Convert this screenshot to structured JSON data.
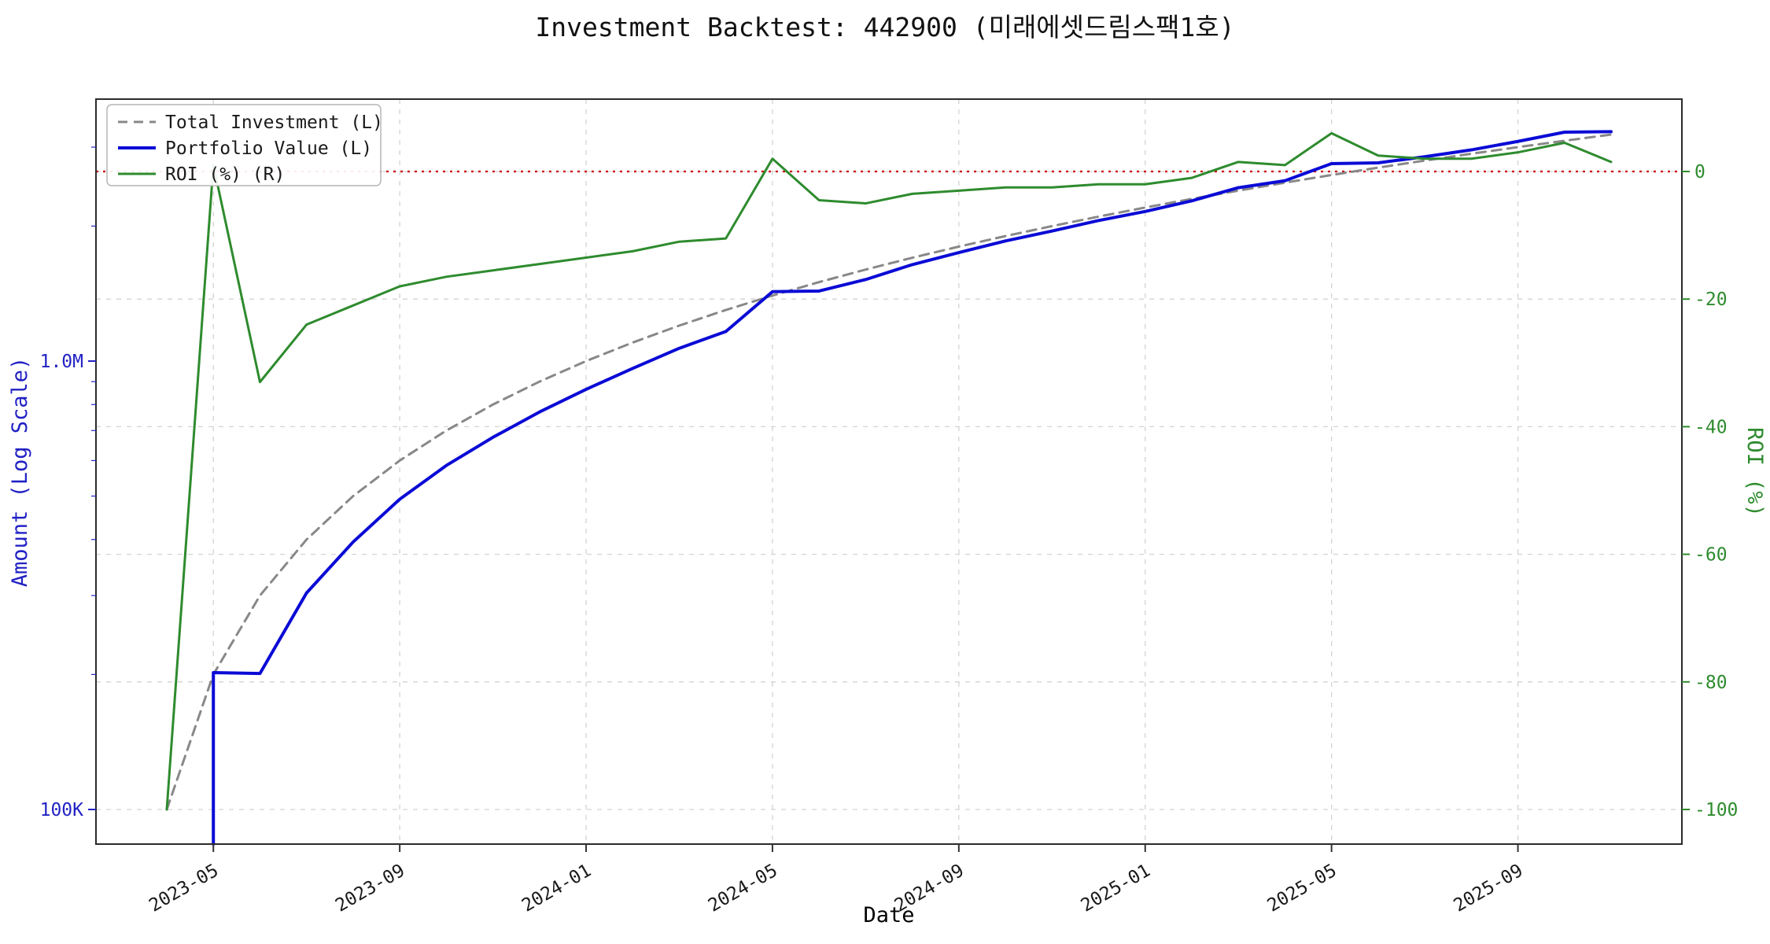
{
  "title": "Investment Backtest: 442900 (미래에셋드림스팩1호)",
  "chart_data": {
    "type": "line",
    "title": "Investment Backtest: 442900 (미래에셋드림스팩1호)",
    "xlabel": "Date",
    "ylabel_left": "Amount (Log Scale)",
    "ylabel_right": "ROI (%)",
    "x_tick_labels": [
      "2023-05",
      "2023-09",
      "2024-01",
      "2024-05",
      "2024-09",
      "2025-01",
      "2025-05",
      "2025-09"
    ],
    "left_ticks": [
      {
        "label": "1.0M",
        "value": 1000000
      },
      {
        "label": "100K",
        "value": 100000
      }
    ],
    "right_ticks": [
      0,
      -20,
      -40,
      -60,
      -80,
      -100
    ],
    "dates": [
      "2023-04",
      "2023-05",
      "2023-06",
      "2023-07",
      "2023-08",
      "2023-09",
      "2023-10",
      "2023-11",
      "2023-12",
      "2024-01",
      "2024-02",
      "2024-03",
      "2024-04",
      "2024-05",
      "2024-06",
      "2024-07",
      "2024-08",
      "2024-09",
      "2024-10",
      "2024-11",
      "2024-12",
      "2025-01",
      "2025-02",
      "2025-03",
      "2025-04",
      "2025-05",
      "2025-06",
      "2025-07",
      "2025-08",
      "2025-09",
      "2025-10",
      "2025-11"
    ],
    "series": [
      {
        "name": "Total Investment (L)",
        "axis": "left",
        "style": "dashed",
        "color": "#888888",
        "values": [
          100000,
          200000,
          300000,
          400000,
          500000,
          600000,
          700000,
          800000,
          900000,
          1000000,
          1100000,
          1200000,
          1300000,
          1400000,
          1500000,
          1600000,
          1700000,
          1800000,
          1900000,
          2000000,
          2100000,
          2200000,
          2300000,
          2400000,
          2500000,
          2600000,
          2700000,
          2800000,
          2900000,
          3000000,
          3100000,
          3200000
        ]
      },
      {
        "name": "Portfolio Value (L)",
        "axis": "left",
        "style": "solid",
        "color": "#0b0bd6",
        "values": [
          null,
          202000,
          201000,
          304000,
          395000,
          492000,
          585000,
          676000,
          770000,
          865000,
          963000,
          1068000,
          1164000,
          1428000,
          1433000,
          1520000,
          1641000,
          1746000,
          1853000,
          1950000,
          2058000,
          2156000,
          2277000,
          2436000,
          2525000,
          2756000,
          2768000,
          2856000,
          2958000,
          3090000,
          3240000,
          3248000
        ]
      },
      {
        "name": "ROI (%) (R)",
        "axis": "right",
        "style": "solid",
        "color": "#2e8b2e",
        "values": [
          -100,
          1,
          -33,
          -24,
          -21,
          -18,
          -16.5,
          -15.5,
          -14.5,
          -13.5,
          -12.5,
          -11,
          -10.5,
          2,
          -4.5,
          -5,
          -3.5,
          -3,
          -2.5,
          -2.5,
          -2,
          -2,
          -1,
          1.5,
          1,
          6,
          2.5,
          2,
          2,
          3,
          4.5,
          1.5
        ]
      }
    ],
    "zero_line": {
      "value": 0,
      "color": "#cc0000"
    },
    "axis_colors": {
      "left": "#2222c4",
      "right": "#2e8b2e",
      "x": "#1a1a1a"
    },
    "grid": {
      "on": true,
      "color": "#c9c9c9"
    },
    "legend_position": "upper-left"
  }
}
